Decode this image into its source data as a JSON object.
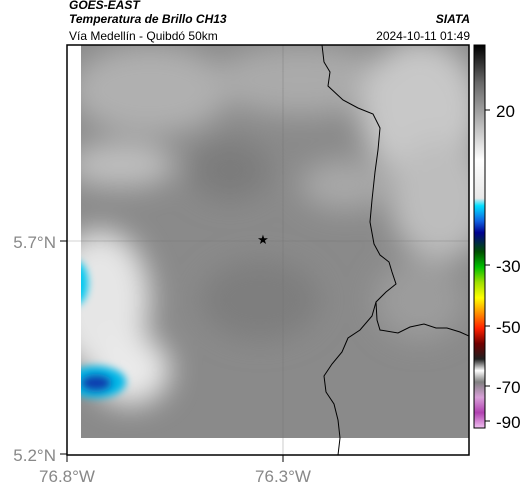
{
  "header": {
    "source": "GOES-EAST",
    "product": "Temperatura de Brillo CH13",
    "organization": "SIATA",
    "region": "Vía Medellín - Quibdó 50km",
    "timestamp": "2024-10-11 01:49"
  },
  "map": {
    "lat_labels": [
      "5.7°N",
      "5.2°N"
    ],
    "lon_labels": [
      "76.8°W",
      "76.3°W"
    ],
    "marker_icon": "star-icon",
    "background_color": "#8a8a8a"
  },
  "colorbar": {
    "tick_labels": [
      "20",
      "-30",
      "-50",
      "-70",
      "-90"
    ]
  }
}
